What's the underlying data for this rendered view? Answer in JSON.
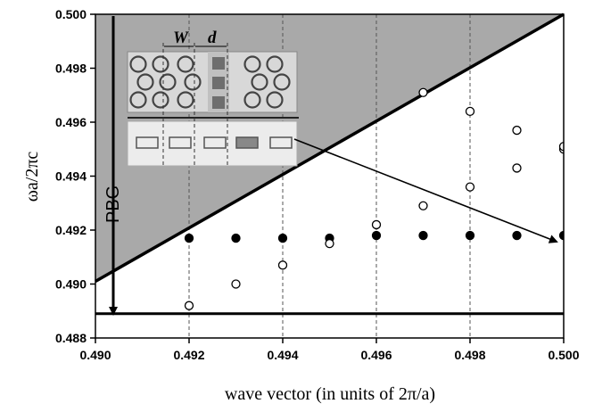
{
  "chart_data": {
    "type": "scatter",
    "xlabel": "wave vector (in units of 2π/a)",
    "ylabel": "ωa/2πc",
    "xlim": [
      0.49,
      0.5
    ],
    "ylim": [
      0.488,
      0.5
    ],
    "xticks": [
      "0.490",
      "0.492",
      "0.494",
      "0.496",
      "0.498",
      "0.500"
    ],
    "yticks": [
      "0.488",
      "0.490",
      "0.492",
      "0.494",
      "0.496",
      "0.498",
      "0.500"
    ],
    "grid": "vertical dashed",
    "series": [
      {
        "marker": "filled-circle",
        "x": [
          0.492,
          0.493,
          0.494,
          0.495,
          0.496,
          0.497,
          0.498,
          0.499,
          0.5
        ],
        "y": [
          0.4917,
          0.4917,
          0.4917,
          0.4917,
          0.4918,
          0.4918,
          0.4918,
          0.4918,
          0.4918
        ]
      },
      {
        "marker": "open-circle",
        "x": [
          0.492,
          0.493,
          0.494,
          0.495,
          0.496,
          0.497,
          0.497,
          0.498,
          0.498,
          0.499,
          0.499,
          0.5,
          0.5
        ],
        "y": [
          0.4892,
          0.49,
          0.4907,
          0.4915,
          0.4922,
          0.4929,
          0.4971,
          0.4936,
          0.4964,
          0.4943,
          0.4957,
          0.495,
          0.4951
        ]
      }
    ],
    "light_line": {
      "x": [
        0.49,
        0.5
      ],
      "y": [
        0.4901,
        0.5
      ]
    },
    "band_edge_y": 0.4889,
    "annotations": {
      "band_gap_label": "PBG",
      "width_label": "W",
      "spacing_label": "d"
    },
    "colors": {
      "shaded_region": "#a9a9a9",
      "marker": "#000000",
      "background": "#ffffff"
    }
  }
}
